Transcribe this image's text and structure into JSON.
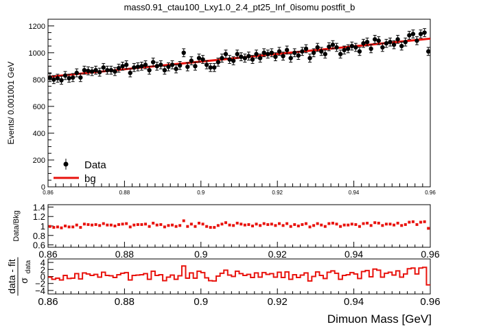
{
  "title": "mass0.91_ctau100_Lxy1.0_2.4_pt25_Inf_0isomu   postfit_b",
  "chart_data": [
    {
      "panel": "main",
      "type": "scatter",
      "ylabel": "Events/ 0.001001 GeV",
      "xlim": [
        0.86,
        0.96
      ],
      "ylim": [
        0,
        1250
      ],
      "yticks": [
        0,
        200,
        400,
        600,
        800,
        1000,
        1200
      ],
      "xticks": [
        "0.86",
        "0.88",
        "0.9",
        "0.92",
        "0.94",
        "0.96"
      ],
      "legend_position": "bottom-left",
      "series": [
        {
          "name": "Data",
          "style": "markers-with-error-bars",
          "x": [
            0.8605,
            0.8615,
            0.8625,
            0.8635,
            0.8645,
            0.8655,
            0.8665,
            0.8675,
            0.8685,
            0.8695,
            0.8705,
            0.8715,
            0.8725,
            0.8735,
            0.8745,
            0.8755,
            0.8765,
            0.8775,
            0.8785,
            0.8795,
            0.8805,
            0.8815,
            0.8825,
            0.8835,
            0.8845,
            0.8855,
            0.8865,
            0.8875,
            0.8885,
            0.8895,
            0.8905,
            0.8915,
            0.8925,
            0.8935,
            0.8945,
            0.8955,
            0.8965,
            0.8975,
            0.8985,
            0.8995,
            0.9005,
            0.9015,
            0.9025,
            0.9035,
            0.9045,
            0.9055,
            0.9065,
            0.9075,
            0.9085,
            0.9095,
            0.9105,
            0.9115,
            0.9125,
            0.9135,
            0.9145,
            0.9155,
            0.9165,
            0.9175,
            0.9185,
            0.9195,
            0.9205,
            0.9215,
            0.9225,
            0.9235,
            0.9245,
            0.9255,
            0.9265,
            0.9275,
            0.9285,
            0.9295,
            0.9305,
            0.9315,
            0.9325,
            0.9335,
            0.9345,
            0.9355,
            0.9365,
            0.9375,
            0.9385,
            0.9395,
            0.9405,
            0.9415,
            0.9425,
            0.9435,
            0.9445,
            0.9455,
            0.9465,
            0.9475,
            0.9485,
            0.9495,
            0.9505,
            0.9515,
            0.9525,
            0.9535,
            0.9545,
            0.9555,
            0.9565,
            0.9575,
            0.9585,
            0.9595
          ],
          "y": [
            815,
            800,
            810,
            795,
            830,
            810,
            815,
            850,
            815,
            870,
            865,
            860,
            870,
            855,
            890,
            870,
            870,
            860,
            885,
            900,
            910,
            850,
            890,
            895,
            900,
            910,
            870,
            930,
            900,
            910,
            870,
            895,
            910,
            880,
            905,
            1000,
            895,
            940,
            900,
            960,
            950,
            910,
            890,
            890,
            930,
            960,
            990,
            950,
            940,
            990,
            970,
            960,
            975,
            950,
            990,
            960,
            1000,
            990,
            1000,
            970,
            1010,
            975,
            1020,
            960,
            1000,
            980,
            1010,
            1030,
            960,
            1000,
            1040,
            1010,
            990,
            1045,
            1060,
            1040,
            990,
            1020,
            1030,
            1050,
            1040,
            1010,
            1070,
            1080,
            1030,
            1100,
            1090,
            1040,
            1070,
            1080,
            1060,
            1100,
            1050,
            1080,
            1130,
            1140,
            1090,
            1140,
            1150,
            1010
          ],
          "yerr": 30
        },
        {
          "name": "bg",
          "style": "line",
          "x": [
            0.86,
            0.96
          ],
          "y": [
            820,
            1105
          ]
        }
      ]
    },
    {
      "panel": "ratio",
      "type": "scatter",
      "ylabel": "Data/Bkg",
      "xlim": [
        0.86,
        0.96
      ],
      "ylim": [
        0.55,
        1.45
      ],
      "yticks": [
        0.6,
        0.8,
        1,
        1.2,
        1.4
      ],
      "ytick_labels": [
        "0.6",
        "0.8",
        "1",
        "1.2",
        "1.4"
      ],
      "xticks": [
        "0.86",
        "0.88",
        "0.9",
        "0.92",
        "0.94",
        "0.96"
      ],
      "values": [
        0.99,
        0.97,
        0.98,
        0.96,
        1.0,
        0.98,
        0.98,
        1.02,
        0.97,
        1.04,
        1.03,
        1.02,
        1.03,
        1.01,
        1.05,
        1.02,
        1.02,
        1.0,
        1.03,
        1.04,
        1.05,
        0.98,
        1.02,
        1.03,
        1.03,
        1.04,
        0.99,
        1.06,
        1.02,
        1.03,
        0.98,
        1.01,
        1.02,
        0.99,
        1.01,
        1.11,
        0.99,
        1.04,
        0.99,
        1.06,
        1.04,
        0.99,
        0.97,
        0.97,
        1.01,
        1.04,
        1.07,
        1.02,
        1.01,
        1.06,
        1.04,
        1.02,
        1.03,
        1.0,
        1.04,
        1.01,
        1.05,
        1.03,
        1.04,
        1.01,
        1.05,
        1.01,
        1.05,
        0.99,
        1.03,
        1.0,
        1.03,
        1.05,
        0.98,
        1.01,
        1.05,
        1.02,
        0.99,
        1.05,
        1.06,
        1.04,
        0.99,
        1.02,
        1.02,
        1.04,
        1.03,
        0.99,
        1.05,
        1.06,
        1.01,
        1.07,
        1.06,
        1.01,
        1.04,
        1.04,
        1.02,
        1.06,
        1.01,
        1.03,
        1.08,
        1.09,
        1.03,
        1.08,
        1.09,
        0.95
      ]
    },
    {
      "panel": "pull",
      "type": "step",
      "ylabel_main": "data - fit",
      "ylabel_sub": "σ",
      "ylabel_subscript": "data",
      "xlabel": "Dimuon Mass [GeV]",
      "xlim": [
        0.86,
        0.96
      ],
      "ylim": [
        -5,
        5
      ],
      "yticks": [
        -4,
        -2,
        0,
        2,
        4
      ],
      "ytick_labels": [
        "−4",
        "−2",
        "0",
        "2",
        "4"
      ],
      "xticks": [
        "0.86",
        "0.88",
        "0.9",
        "0.92",
        "0.94",
        "0.96"
      ],
      "values": [
        -0.2,
        -0.8,
        -0.5,
        -1.0,
        0.3,
        -0.6,
        -0.5,
        0.8,
        -0.7,
        1.0,
        0.7,
        0.3,
        0.6,
        -0.2,
        1.2,
        0.3,
        0.2,
        -0.3,
        0.5,
        0.9,
        1.1,
        -1.0,
        0.3,
        0.4,
        0.5,
        0.8,
        -0.8,
        1.5,
        0.3,
        0.5,
        -1.2,
        -0.2,
        0.4,
        -0.8,
        0.2,
        3.0,
        -0.5,
        1.0,
        -0.5,
        1.5,
        1.1,
        -0.4,
        -1.2,
        -1.3,
        0.1,
        0.9,
        1.8,
        0.4,
        0.0,
        1.5,
        0.8,
        0.3,
        0.6,
        -0.3,
        1.0,
        -0.2,
        1.1,
        0.6,
        0.8,
        -0.2,
        1.2,
        -0.3,
        1.3,
        -0.8,
        0.5,
        -0.3,
        0.4,
        1.0,
        -1.3,
        0.0,
        1.3,
        0.3,
        -0.6,
        1.2,
        1.6,
        0.9,
        -0.8,
        0.3,
        0.5,
        1.1,
        0.7,
        -0.6,
        1.4,
        1.7,
        -0.1,
        2.1,
        1.8,
        -0.2,
        0.9,
        1.2,
        0.4,
        1.6,
        -0.2,
        0.7,
        2.2,
        2.4,
        0.7,
        2.4,
        2.6,
        -2.4
      ]
    }
  ]
}
